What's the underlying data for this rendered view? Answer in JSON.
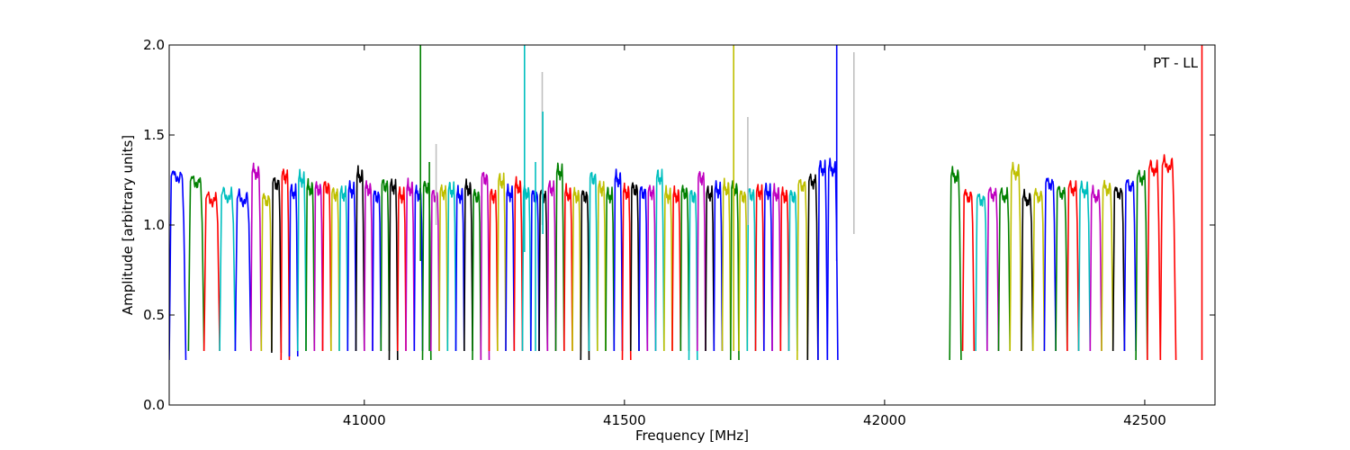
{
  "chart_data": {
    "type": "line",
    "title": "",
    "annotation": "PT - LL",
    "xlabel": "Frequency [MHz]",
    "ylabel": "Amplitude [arbitrary units]",
    "xlim": [
      40625,
      42635
    ],
    "ylim": [
      0.0,
      2.0
    ],
    "xticks": [
      {
        "value": 41000,
        "label": "41000"
      },
      {
        "value": 41500,
        "label": "41500"
      },
      {
        "value": 42000,
        "label": "42000"
      },
      {
        "value": 42500,
        "label": "42500"
      }
    ],
    "yticks": [
      {
        "value": 0.0,
        "label": "0.0"
      },
      {
        "value": 0.5,
        "label": "0.5"
      },
      {
        "value": 1.0,
        "label": "1.0"
      },
      {
        "value": 1.5,
        "label": "1.5"
      },
      {
        "value": 2.0,
        "label": "2.0"
      }
    ],
    "grid": false,
    "color_cycle": [
      "#0000ff",
      "#008000",
      "#ff0000",
      "#00bfbf",
      "#bfbf00",
      "#000000",
      "#bf00bf"
    ],
    "spike_color": "#c0c0c0",
    "subbands": [
      {
        "start": 40625,
        "end": 40657,
        "peak": 1.31,
        "min": 0.25,
        "color": "#0000ff"
      },
      {
        "start": 40662,
        "end": 40692,
        "peak": 1.28,
        "min": 0.3,
        "color": "#008000"
      },
      {
        "start": 40692,
        "end": 40722,
        "peak": 1.18,
        "min": 0.3,
        "color": "#ff0000"
      },
      {
        "start": 40722,
        "end": 40752,
        "peak": 1.2,
        "min": 0.3,
        "color": "#00bfbf"
      },
      {
        "start": 40752,
        "end": 40782,
        "peak": 1.18,
        "min": 0.3,
        "color": "#0000ff"
      },
      {
        "start": 40782,
        "end": 40802,
        "peak": 1.33,
        "min": 0.3,
        "color": "#bf00bf"
      },
      {
        "start": 40802,
        "end": 40822,
        "peak": 1.18,
        "min": 0.3,
        "color": "#bfbf00"
      },
      {
        "start": 40822,
        "end": 40840,
        "peak": 1.27,
        "min": 0.29,
        "color": "#000000"
      },
      {
        "start": 40840,
        "end": 40856,
        "peak": 1.31,
        "min": 0.25,
        "color": "#ff0000"
      },
      {
        "start": 40856,
        "end": 40872,
        "peak": 1.22,
        "min": 0.27,
        "color": "#0000ff"
      },
      {
        "start": 40872,
        "end": 40888,
        "peak": 1.29,
        "min": 0.3,
        "color": "#00bfbf"
      },
      {
        "start": 40888,
        "end": 40904,
        "peak": 1.24,
        "min": 0.3,
        "color": "#008000"
      },
      {
        "start": 40904,
        "end": 40920,
        "peak": 1.24,
        "min": 0.3,
        "color": "#bf00bf"
      },
      {
        "start": 40920,
        "end": 40936,
        "peak": 1.25,
        "min": 0.3,
        "color": "#ff0000"
      },
      {
        "start": 40936,
        "end": 40952,
        "peak": 1.21,
        "min": 0.3,
        "color": "#bfbf00"
      },
      {
        "start": 40952,
        "end": 40968,
        "peak": 1.21,
        "min": 0.3,
        "color": "#00bfbf"
      },
      {
        "start": 40968,
        "end": 40984,
        "peak": 1.23,
        "min": 0.3,
        "color": "#0000ff"
      },
      {
        "start": 40984,
        "end": 41000,
        "peak": 1.31,
        "min": 0.3,
        "color": "#000000"
      },
      {
        "start": 41000,
        "end": 41016,
        "peak": 1.24,
        "min": 0.3,
        "color": "#bf00bf"
      },
      {
        "start": 41016,
        "end": 41032,
        "peak": 1.2,
        "min": 0.3,
        "color": "#0000ff"
      },
      {
        "start": 41032,
        "end": 41048,
        "peak": 1.26,
        "min": 0.3,
        "color": "#008000"
      },
      {
        "start": 41048,
        "end": 41064,
        "peak": 1.25,
        "min": 0.25,
        "color": "#000000"
      },
      {
        "start": 41064,
        "end": 41080,
        "peak": 1.2,
        "min": 0.3,
        "color": "#ff0000"
      },
      {
        "start": 41080,
        "end": 41096,
        "peak": 1.24,
        "min": 0.3,
        "color": "#bf00bf"
      },
      {
        "start": 41096,
        "end": 41112,
        "peak": 1.21,
        "min": 0.3,
        "color": "#0000ff"
      },
      {
        "start": 41112,
        "end": 41128,
        "peak": 1.25,
        "min": 0.25,
        "color": "#008000"
      },
      {
        "start": 41128,
        "end": 41144,
        "peak": 1.2,
        "min": 0.3,
        "color": "#bf00bf"
      },
      {
        "start": 41144,
        "end": 41160,
        "peak": 1.22,
        "min": 0.3,
        "color": "#bfbf00"
      },
      {
        "start": 41160,
        "end": 41176,
        "peak": 1.23,
        "min": 0.3,
        "color": "#00bfbf"
      },
      {
        "start": 41176,
        "end": 41192,
        "peak": 1.2,
        "min": 0.3,
        "color": "#0000ff"
      },
      {
        "start": 41192,
        "end": 41208,
        "peak": 1.24,
        "min": 0.3,
        "color": "#000000"
      },
      {
        "start": 41208,
        "end": 41224,
        "peak": 1.2,
        "min": 0.25,
        "color": "#008000"
      },
      {
        "start": 41224,
        "end": 41240,
        "peak": 1.3,
        "min": 0.25,
        "color": "#bf00bf"
      },
      {
        "start": 41240,
        "end": 41256,
        "peak": 1.2,
        "min": 0.3,
        "color": "#ff0000"
      },
      {
        "start": 41256,
        "end": 41272,
        "peak": 1.28,
        "min": 0.3,
        "color": "#bfbf00"
      },
      {
        "start": 41272,
        "end": 41288,
        "peak": 1.21,
        "min": 0.3,
        "color": "#0000ff"
      },
      {
        "start": 41288,
        "end": 41304,
        "peak": 1.25,
        "min": 0.3,
        "color": "#ff0000"
      },
      {
        "start": 41304,
        "end": 41320,
        "peak": 1.22,
        "min": 0.3,
        "color": "#00bfbf"
      },
      {
        "start": 41320,
        "end": 41336,
        "peak": 1.2,
        "min": 0.3,
        "color": "#0000ff"
      },
      {
        "start": 41336,
        "end": 41352,
        "peak": 1.2,
        "min": 0.3,
        "color": "#000000"
      },
      {
        "start": 41352,
        "end": 41368,
        "peak": 1.24,
        "min": 0.3,
        "color": "#bf00bf"
      },
      {
        "start": 41368,
        "end": 41384,
        "peak": 1.33,
        "min": 0.3,
        "color": "#008000"
      },
      {
        "start": 41384,
        "end": 41400,
        "peak": 1.21,
        "min": 0.3,
        "color": "#ff0000"
      },
      {
        "start": 41400,
        "end": 41416,
        "peak": 1.2,
        "min": 0.3,
        "color": "#bfbf00"
      },
      {
        "start": 41416,
        "end": 41432,
        "peak": 1.2,
        "min": 0.25,
        "color": "#000000"
      },
      {
        "start": 41432,
        "end": 41448,
        "peak": 1.3,
        "min": 0.3,
        "color": "#00bfbf"
      },
      {
        "start": 41448,
        "end": 41464,
        "peak": 1.24,
        "min": 0.3,
        "color": "#bfbf00"
      },
      {
        "start": 41464,
        "end": 41480,
        "peak": 1.2,
        "min": 0.3,
        "color": "#008000"
      },
      {
        "start": 41480,
        "end": 41496,
        "peak": 1.29,
        "min": 0.3,
        "color": "#0000ff"
      },
      {
        "start": 41496,
        "end": 41512,
        "peak": 1.22,
        "min": 0.25,
        "color": "#ff0000"
      },
      {
        "start": 41512,
        "end": 41528,
        "peak": 1.24,
        "min": 0.3,
        "color": "#000000"
      },
      {
        "start": 41528,
        "end": 41544,
        "peak": 1.22,
        "min": 0.3,
        "color": "#0000ff"
      },
      {
        "start": 41544,
        "end": 41560,
        "peak": 1.22,
        "min": 0.3,
        "color": "#bf00bf"
      },
      {
        "start": 41560,
        "end": 41576,
        "peak": 1.3,
        "min": 0.3,
        "color": "#00bfbf"
      },
      {
        "start": 41576,
        "end": 41592,
        "peak": 1.2,
        "min": 0.3,
        "color": "#bfbf00"
      },
      {
        "start": 41592,
        "end": 41608,
        "peak": 1.2,
        "min": 0.3,
        "color": "#ff0000"
      },
      {
        "start": 41608,
        "end": 41624,
        "peak": 1.22,
        "min": 0.3,
        "color": "#008000"
      },
      {
        "start": 41624,
        "end": 41640,
        "peak": 1.2,
        "min": 0.25,
        "color": "#00bfbf"
      },
      {
        "start": 41640,
        "end": 41656,
        "peak": 1.3,
        "min": 0.3,
        "color": "#bf00bf"
      },
      {
        "start": 41656,
        "end": 41672,
        "peak": 1.21,
        "min": 0.3,
        "color": "#000000"
      },
      {
        "start": 41672,
        "end": 41688,
        "peak": 1.23,
        "min": 0.3,
        "color": "#0000ff"
      },
      {
        "start": 41688,
        "end": 41704,
        "peak": 1.24,
        "min": 0.3,
        "color": "#bfbf00"
      },
      {
        "start": 41704,
        "end": 41720,
        "peak": 1.24,
        "min": 0.25,
        "color": "#008000"
      },
      {
        "start": 41720,
        "end": 41736,
        "peak": 1.2,
        "min": 0.3,
        "color": "#bfbf00"
      },
      {
        "start": 41736,
        "end": 41752,
        "peak": 1.21,
        "min": 0.3,
        "color": "#00bfbf"
      },
      {
        "start": 41752,
        "end": 41768,
        "peak": 1.22,
        "min": 0.3,
        "color": "#ff0000"
      },
      {
        "start": 41768,
        "end": 41784,
        "peak": 1.22,
        "min": 0.3,
        "color": "#0000ff"
      },
      {
        "start": 41784,
        "end": 41800,
        "peak": 1.21,
        "min": 0.3,
        "color": "#bf00bf"
      },
      {
        "start": 41800,
        "end": 41816,
        "peak": 1.2,
        "min": 0.3,
        "color": "#ff0000"
      },
      {
        "start": 41816,
        "end": 41832,
        "peak": 1.2,
        "min": 0.3,
        "color": "#00bfbf"
      },
      {
        "start": 41832,
        "end": 41852,
        "peak": 1.26,
        "min": 0.25,
        "color": "#bfbf00"
      },
      {
        "start": 41852,
        "end": 41872,
        "peak": 1.28,
        "min": 0.25,
        "color": "#000000"
      },
      {
        "start": 41872,
        "end": 41890,
        "peak": 1.35,
        "min": 0.25,
        "color": "#0000ff"
      },
      {
        "start": 41890,
        "end": 41910,
        "peak": 1.35,
        "min": 0.25,
        "color": "#0000ff"
      },
      {
        "start": 42125,
        "end": 42147,
        "peak": 1.31,
        "min": 0.25,
        "color": "#008000"
      },
      {
        "start": 42150,
        "end": 42172,
        "peak": 1.2,
        "min": 0.3,
        "color": "#ff0000"
      },
      {
        "start": 42175,
        "end": 42197,
        "peak": 1.18,
        "min": 0.3,
        "color": "#00bfbf"
      },
      {
        "start": 42197,
        "end": 42219,
        "peak": 1.21,
        "min": 0.3,
        "color": "#bf00bf"
      },
      {
        "start": 42219,
        "end": 42241,
        "peak": 1.2,
        "min": 0.3,
        "color": "#008000"
      },
      {
        "start": 42241,
        "end": 42263,
        "peak": 1.33,
        "min": 0.3,
        "color": "#bfbf00"
      },
      {
        "start": 42263,
        "end": 42285,
        "peak": 1.18,
        "min": 0.3,
        "color": "#000000"
      },
      {
        "start": 42285,
        "end": 42307,
        "peak": 1.2,
        "min": 0.3,
        "color": "#bfbf00"
      },
      {
        "start": 42307,
        "end": 42329,
        "peak": 1.27,
        "min": 0.3,
        "color": "#0000ff"
      },
      {
        "start": 42329,
        "end": 42351,
        "peak": 1.22,
        "min": 0.3,
        "color": "#008000"
      },
      {
        "start": 42351,
        "end": 42373,
        "peak": 1.24,
        "min": 0.3,
        "color": "#ff0000"
      },
      {
        "start": 42373,
        "end": 42395,
        "peak": 1.23,
        "min": 0.3,
        "color": "#00bfbf"
      },
      {
        "start": 42395,
        "end": 42417,
        "peak": 1.2,
        "min": 0.3,
        "color": "#bf00bf"
      },
      {
        "start": 42417,
        "end": 42439,
        "peak": 1.24,
        "min": 0.3,
        "color": "#bfbf00"
      },
      {
        "start": 42439,
        "end": 42461,
        "peak": 1.22,
        "min": 0.3,
        "color": "#000000"
      },
      {
        "start": 42461,
        "end": 42483,
        "peak": 1.26,
        "min": 0.3,
        "color": "#0000ff"
      },
      {
        "start": 42483,
        "end": 42505,
        "peak": 1.3,
        "min": 0.25,
        "color": "#008000"
      },
      {
        "start": 42505,
        "end": 42530,
        "peak": 1.35,
        "min": 0.25,
        "color": "#ff0000"
      },
      {
        "start": 42530,
        "end": 42560,
        "peak": 1.37,
        "min": 0.25,
        "color": "#ff0000"
      }
    ],
    "spikes": [
      {
        "x": 41108,
        "top": 2.0,
        "bottom": 0.8,
        "color": "#008000"
      },
      {
        "x": 41125,
        "top": 1.35,
        "bottom": 0.3,
        "color": "#008000"
      },
      {
        "x": 41138,
        "top": 1.45,
        "bottom": 1.0,
        "color": "#c0c0c0"
      },
      {
        "x": 41308,
        "top": 2.0,
        "bottom": 0.85,
        "color": "#00bfbf"
      },
      {
        "x": 41329,
        "top": 1.35,
        "bottom": 0.3,
        "color": "#00bfbf"
      },
      {
        "x": 41342,
        "top": 1.85,
        "bottom": 1.0,
        "color": "#c0c0c0"
      },
      {
        "x": 41343,
        "top": 1.63,
        "bottom": 0.95,
        "color": "#00bfbf"
      },
      {
        "x": 41710,
        "top": 2.0,
        "bottom": 0.3,
        "color": "#bfbf00"
      },
      {
        "x": 41737,
        "top": 1.6,
        "bottom": 1.0,
        "color": "#c0c0c0"
      },
      {
        "x": 41908,
        "top": 2.0,
        "bottom": 0.8,
        "color": "#0000ff"
      },
      {
        "x": 41941,
        "top": 1.96,
        "bottom": 0.95,
        "color": "#c0c0c0"
      },
      {
        "x": 42610,
        "top": 2.0,
        "bottom": 0.25,
        "color": "#ff0000"
      }
    ]
  }
}
